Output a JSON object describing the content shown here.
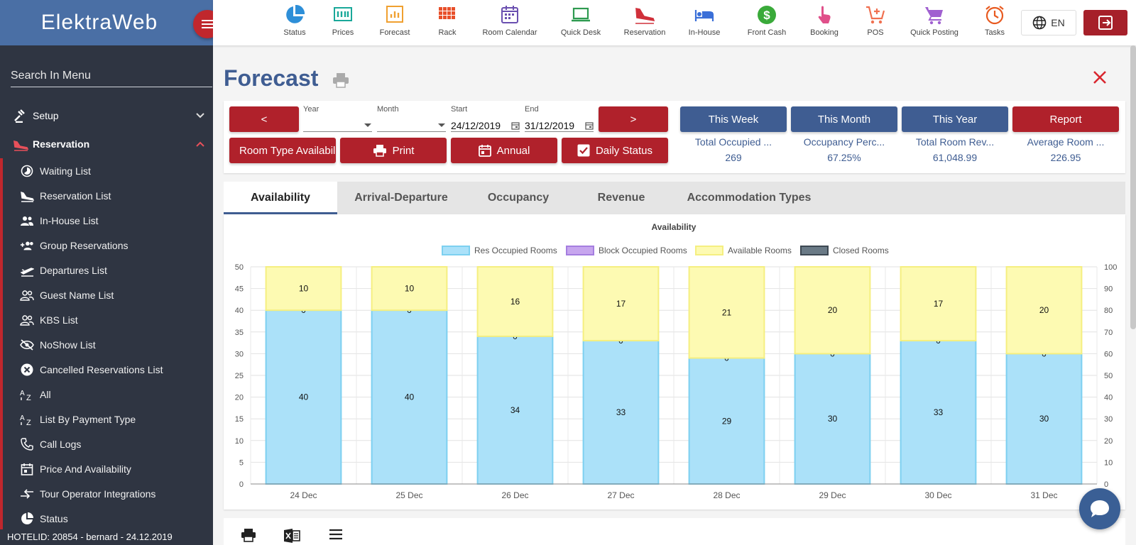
{
  "sidebar": {
    "brand": "ElektraWeb",
    "search_placeholder": "Search In Menu",
    "sections": [
      {
        "label": "Setup"
      },
      {
        "label": "Reservation"
      }
    ],
    "items": [
      {
        "label": "Waiting List"
      },
      {
        "label": "Reservation List"
      },
      {
        "label": "In-House List"
      },
      {
        "label": "Group Reservations"
      },
      {
        "label": "Departures List"
      },
      {
        "label": "Guest Name List"
      },
      {
        "label": "KBS List"
      },
      {
        "label": "NoShow List"
      },
      {
        "label": "Cancelled Reservations List"
      },
      {
        "label": "All"
      },
      {
        "label": "List By Payment Type"
      },
      {
        "label": "Call Logs"
      },
      {
        "label": "Price And Availability"
      },
      {
        "label": "Tour Operator Integrations"
      },
      {
        "label": "Status"
      }
    ],
    "footer": "HOTELID: 20854 - bernard - 24.12.2019"
  },
  "topbar": {
    "items": [
      {
        "label": "Status",
        "icon": "pie-icon",
        "color": "#2e8fd8"
      },
      {
        "label": "Prices",
        "icon": "prices-icon",
        "color": "#1aa89a"
      },
      {
        "label": "Forecast",
        "icon": "forecast-icon",
        "color": "#f0a030"
      },
      {
        "label": "Rack",
        "icon": "rack-icon",
        "color": "#e8502a"
      },
      {
        "label": "Room Calendar",
        "icon": "calendar-icon",
        "color": "#6a4fb0"
      },
      {
        "label": "Quick Desk",
        "icon": "laptop-icon",
        "color": "#2e9a50"
      },
      {
        "label": "Reservation",
        "icon": "plane-icon",
        "color": "#d0303a"
      },
      {
        "label": "In-House",
        "icon": "bed-icon",
        "color": "#3a6fd8"
      },
      {
        "label": "Front Cash",
        "icon": "dollar-icon",
        "color": "#3aaa3a"
      },
      {
        "label": "Booking",
        "icon": "hand-icon",
        "color": "#e0508a"
      },
      {
        "label": "POS",
        "icon": "cart-plus-icon",
        "color": "#f07050"
      },
      {
        "label": "Quick Posting",
        "icon": "cart-icon",
        "color": "#a060d0"
      },
      {
        "label": "Tasks",
        "icon": "alarm-icon",
        "color": "#e85a20"
      }
    ],
    "language": "EN"
  },
  "page": {
    "title": "Forecast"
  },
  "filters": {
    "prev": "<",
    "next": ">",
    "year_label": "Year",
    "year_value": "",
    "month_label": "Month",
    "month_value": "",
    "start_label": "Start",
    "start_value": "24/12/2019",
    "end_label": "End",
    "end_value": "31/12/2019",
    "room_type_btn": "Room Type Availability",
    "print_btn": "Print",
    "annual_btn": "Annual",
    "daily_status_btn": "Daily Status",
    "this_week": "This Week",
    "this_month": "This Month",
    "this_year": "This Year",
    "report": "Report"
  },
  "stats": [
    {
      "label": "Total Occupied ...",
      "value": "269"
    },
    {
      "label": "Occupancy Perc...",
      "value": "67.25%"
    },
    {
      "label": "Total Room Rev...",
      "value": "61,048.99"
    },
    {
      "label": "Average Room ...",
      "value": "226.95"
    }
  ],
  "tabs": [
    {
      "label": "Availability",
      "active": true
    },
    {
      "label": "Arrival-Departure"
    },
    {
      "label": "Occupancy"
    },
    {
      "label": "Revenue"
    },
    {
      "label": "Accommodation Types"
    }
  ],
  "chart_data": {
    "type": "bar",
    "stacked": true,
    "title": "Availability",
    "categories": [
      "24 Dec",
      "25 Dec",
      "26 Dec",
      "27 Dec",
      "28 Dec",
      "29 Dec",
      "30 Dec",
      "31 Dec"
    ],
    "series": [
      {
        "name": "Res Occupied Rooms",
        "values": [
          40,
          40,
          34,
          33,
          29,
          30,
          33,
          30
        ],
        "color": "#abe1f9",
        "stroke": "#7dd0f0"
      },
      {
        "name": "Block Occupied Rooms",
        "values": [
          0,
          0,
          0,
          0,
          0,
          0,
          0,
          0
        ],
        "color": "#c7a6ee",
        "stroke": "#a57ee0"
      },
      {
        "name": "Available Rooms",
        "values": [
          10,
          10,
          16,
          17,
          21,
          20,
          17,
          20
        ],
        "color": "#fdfab2",
        "stroke": "#f5ef80"
      },
      {
        "name": "Closed Rooms",
        "values": [
          0,
          0,
          0,
          0,
          0,
          0,
          0,
          0
        ],
        "color": "#6a7a86",
        "stroke": "#3d4852"
      }
    ],
    "ylim": [
      0,
      50
    ],
    "yticks": [
      0,
      5,
      10,
      15,
      20,
      25,
      30,
      35,
      40,
      45,
      50
    ],
    "y2lim": [
      0,
      100
    ],
    "y2ticks": [
      0,
      10,
      20,
      30,
      40,
      50,
      60,
      70,
      80,
      90,
      100
    ],
    "grid": true,
    "legend": "top-center"
  }
}
